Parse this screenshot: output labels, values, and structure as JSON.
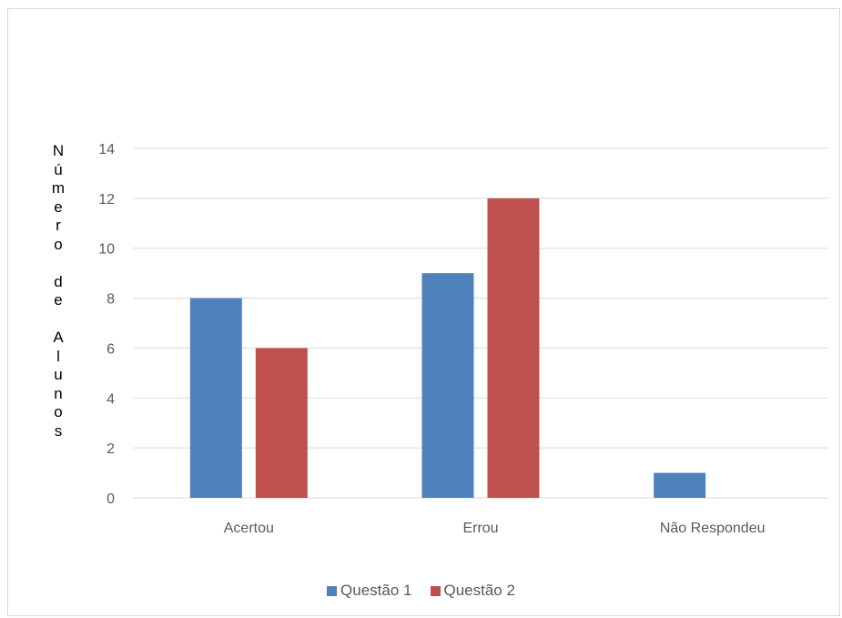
{
  "chart_data": {
    "type": "bar",
    "categories": [
      "Acertou",
      "Errou",
      "Não Respondeu"
    ],
    "series": [
      {
        "name": "Questão 1",
        "values": [
          8,
          9,
          1
        ],
        "color": "#4f81bd"
      },
      {
        "name": "Questão 2",
        "values": [
          6,
          12,
          0
        ],
        "color": "#c0504d"
      }
    ],
    "title": "",
    "xlabel": "",
    "ylabel": "Número de Alunos",
    "ylim": [
      0,
      14
    ],
    "yticks": [
      0,
      2,
      4,
      6,
      8,
      10,
      12,
      14
    ],
    "grid": true,
    "legend_position": "bottom"
  }
}
